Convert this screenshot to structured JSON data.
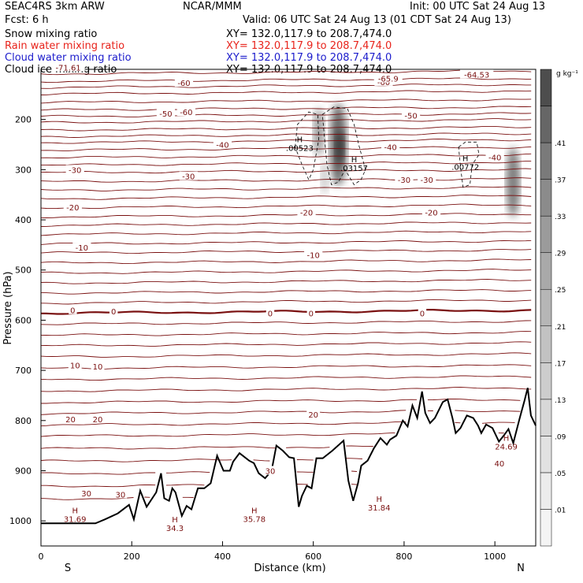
{
  "header": {
    "model": "SEAC4RS   3km ARW",
    "org": "NCAR/MMM",
    "init": "Init: 00 UTC Sat 24 Aug 13",
    "fcst": "Fcst:    6 h",
    "valid": "Valid: 06 UTC Sat 24 Aug 13 (01 CDT Sat 24 Aug 13)"
  },
  "fields": [
    {
      "label": "Snow mixing ratio",
      "xy": "XY= 132.0,117.9 to 208.7,474.0",
      "color": "#000000"
    },
    {
      "label": "Rain water mixing ratio",
      "xy": "XY= 132.0,117.9 to 208.7,474.0",
      "color": "#e8241c"
    },
    {
      "label": "Cloud water mixing ratio",
      "xy": "XY= 132.0,117.9 to 208.7,474.0",
      "color": "#1c1ccc"
    },
    {
      "label": "Cloud ice mixing ratio",
      "xy": "XY= 132.0,117.9 to 208.7,474.0",
      "color": "#000000"
    }
  ],
  "chart_data": {
    "type": "heatmap",
    "xlabel": "Distance (km)",
    "ylabel": "Pressure (hPa)",
    "xlim": [
      0,
      1090
    ],
    "ylim": [
      1050,
      100
    ],
    "x_ticks": [
      0,
      200,
      400,
      600,
      800,
      1000
    ],
    "y_ticks": [
      200,
      300,
      400,
      500,
      600,
      700,
      800,
      900,
      1000
    ],
    "x_end_labels": {
      "left": "S",
      "right": "N"
    },
    "colorbar": {
      "unit": "g kg⁻¹",
      "ticks": [
        ".01",
        ".05",
        ".09",
        ".13",
        ".17",
        ".21",
        ".25",
        ".29",
        ".33",
        ".37",
        ".41"
      ],
      "colors": [
        "#f4f4f4",
        "#ececec",
        "#e2e2e2",
        "#d8d8d8",
        "#cdcdcd",
        "#c2c2c2",
        "#b6b6b6",
        "#a9a9a9",
        "#9b9b9b",
        "#8b8b8b",
        "#7a7a7a",
        "#666666",
        "#4d4d4d"
      ]
    },
    "temperature_contour_labels_C": [
      {
        "x": 60,
        "p": 96,
        "text": "-71.61"
      },
      {
        "x": 315,
        "p": 127,
        "text": "-60"
      },
      {
        "x": 755,
        "p": 125,
        "text": "-60"
      },
      {
        "x": 765,
        "p": 118,
        "text": "-65.9"
      },
      {
        "x": 960,
        "p": 110,
        "text": "-64.53"
      },
      {
        "x": 275,
        "p": 188,
        "text": "-50"
      },
      {
        "x": 320,
        "p": 185,
        "text": "-60"
      },
      {
        "x": 815,
        "p": 192,
        "text": "-50"
      },
      {
        "x": 400,
        "p": 250,
        "text": "-40"
      },
      {
        "x": 770,
        "p": 255,
        "text": "-40"
      },
      {
        "x": 1000,
        "p": 275,
        "text": "-40"
      },
      {
        "x": 75,
        "p": 300,
        "text": "-30"
      },
      {
        "x": 325,
        "p": 313,
        "text": "-30"
      },
      {
        "x": 800,
        "p": 320,
        "text": "-30"
      },
      {
        "x": 850,
        "p": 320,
        "text": "-30"
      },
      {
        "x": 70,
        "p": 375,
        "text": "-20"
      },
      {
        "x": 585,
        "p": 385,
        "text": "-20"
      },
      {
        "x": 860,
        "p": 385,
        "text": "-20"
      },
      {
        "x": 90,
        "p": 455,
        "text": "-10"
      },
      {
        "x": 600,
        "p": 470,
        "text": "-10"
      },
      {
        "x": 70,
        "p": 580,
        "text": "0"
      },
      {
        "x": 160,
        "p": 582,
        "text": "0"
      },
      {
        "x": 505,
        "p": 586,
        "text": "0"
      },
      {
        "x": 595,
        "p": 586,
        "text": "0"
      },
      {
        "x": 840,
        "p": 586,
        "text": "0"
      },
      {
        "x": 75,
        "p": 690,
        "text": "10"
      },
      {
        "x": 125,
        "p": 692,
        "text": "10"
      },
      {
        "x": 600,
        "p": 788,
        "text": "20"
      },
      {
        "x": 65,
        "p": 797,
        "text": "20"
      },
      {
        "x": 125,
        "p": 797,
        "text": "20"
      },
      {
        "x": 505,
        "p": 900,
        "text": "30"
      },
      {
        "x": 100,
        "p": 945,
        "text": "30"
      },
      {
        "x": 175,
        "p": 947,
        "text": "30"
      },
      {
        "x": 1010,
        "p": 885,
        "text": "40"
      }
    ],
    "max_markers": [
      {
        "x": 75,
        "p": 985,
        "label": "H",
        "value": "31.69"
      },
      {
        "x": 295,
        "p": 1003,
        "label": "H",
        "value": "34.3"
      },
      {
        "x": 470,
        "p": 985,
        "label": "H",
        "value": "35.78"
      },
      {
        "x": 745,
        "p": 962,
        "label": "H",
        "value": "31.84"
      },
      {
        "x": 1025,
        "p": 840,
        "label": "H",
        "value": "24.69"
      },
      {
        "x": 570,
        "p": 245,
        "label": "H",
        "value": ".00523"
      },
      {
        "x": 690,
        "p": 285,
        "label": "H",
        "value": ".03157"
      },
      {
        "x": 935,
        "p": 283,
        "label": "H",
        "value": ".00772"
      }
    ]
  }
}
